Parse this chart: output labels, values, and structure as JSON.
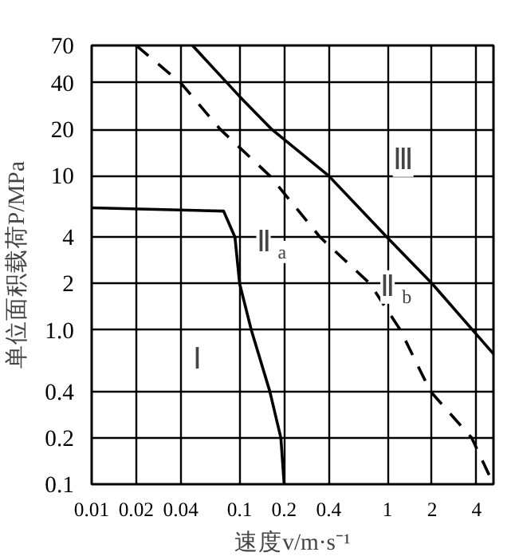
{
  "chart_data": {
    "type": "line",
    "xlabel": "速度v/m·s⁻¹",
    "ylabel": "单位面积载荷P/MPa",
    "log": "xy",
    "grid": true,
    "marker": "none",
    "xlim": [
      0.01,
      5.2
    ],
    "ylim": [
      0.1,
      70
    ],
    "xticks": [
      {
        "value": 0.01,
        "label": "0.01"
      },
      {
        "value": 0.02,
        "label": "0.02"
      },
      {
        "value": 0.04,
        "label": "0.04"
      },
      {
        "value": 0.1,
        "label": "0.1"
      },
      {
        "value": 0.2,
        "label": "0.2"
      },
      {
        "value": 0.4,
        "label": "0.4"
      },
      1,
      2,
      4
    ],
    "yticks": [
      {
        "value": 0.1,
        "label": "0.1"
      },
      {
        "value": 0.2,
        "label": "0.2"
      },
      {
        "value": 0.4,
        "label": "0.4"
      },
      {
        "value": 1,
        "label": "1.0"
      },
      2,
      4,
      10,
      20,
      40,
      70
    ],
    "series": [
      {
        "color": "#000000",
        "line_style": "solid",
        "x": [
          0.01,
          0.078,
          0.093,
          0.1,
          0.12,
          0.16,
          0.19,
          0.2
        ],
        "values": [
          6.2,
          5.9,
          4,
          2,
          1,
          0.4,
          0.2,
          0.1
        ]
      },
      {
        "color": "#000000",
        "line_style": "dashed",
        "x": [
          0.02,
          0.04,
          0.074,
          0.16,
          0.35,
          0.76,
          1.22,
          1.95,
          3.7,
          5.2
        ],
        "values": [
          70,
          40,
          20,
          10,
          4,
          2,
          1,
          0.4,
          0.2,
          0.1
        ]
      },
      {
        "color": "#000000",
        "line_style": "solid",
        "x": [
          0.048,
          0.1,
          0.165,
          0.4,
          0.99,
          2.0,
          5.2
        ],
        "values": [
          70,
          32.7,
          20,
          10,
          4,
          2,
          0.7
        ]
      }
    ],
    "annotations": [
      "Ⅰ",
      {
        "text": "Ⅱ$_{a}$",
        "x": 0.145,
        "y": 3.7
      },
      {
        "text": "Ⅱ$_{b}$",
        "x": 1.0,
        "y": 1.9
      },
      "Ⅲ"
    ]
  }
}
